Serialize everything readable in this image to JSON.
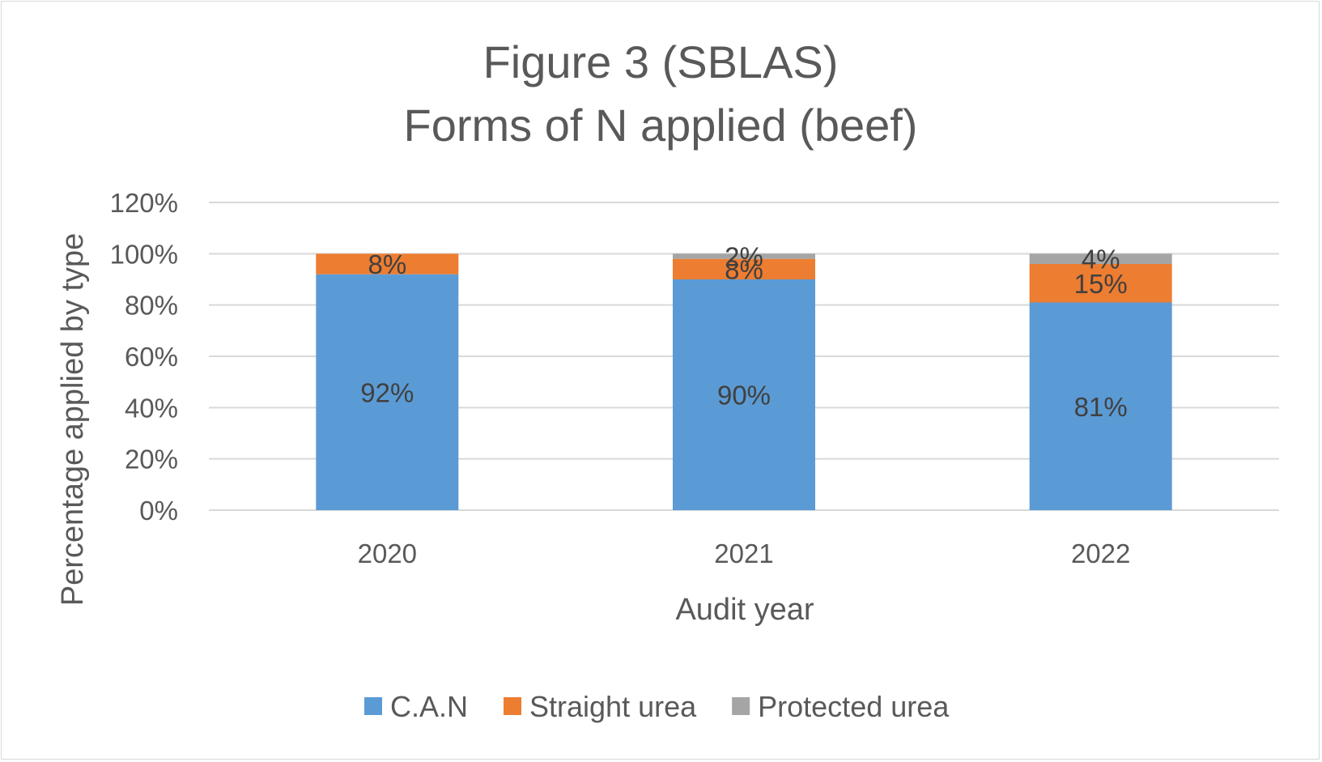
{
  "chart_data": {
    "type": "bar",
    "stacked": true,
    "title": [
      "Figure 3 (SBLAS)",
      "Forms of N applied (beef)"
    ],
    "xlabel": "Audit year",
    "ylabel": "Percentage applied by type",
    "categories": [
      "2020",
      "2021",
      "2022"
    ],
    "ylim": [
      0,
      120
    ],
    "yticks": [
      "0%",
      "20%",
      "40%",
      "60%",
      "80%",
      "100%",
      "120%"
    ],
    "grid": true,
    "legend_position": "bottom",
    "series": [
      {
        "name": "C.A.N",
        "color": "#5b9bd5",
        "values": [
          92,
          90,
          81
        ],
        "labels": [
          "92%",
          "90%",
          "81%"
        ]
      },
      {
        "name": "Straight urea",
        "color": "#ed7d31",
        "values": [
          8,
          8,
          15
        ],
        "labels": [
          "8%",
          "8%",
          "15%"
        ]
      },
      {
        "name": "Protected urea",
        "color": "#a5a5a5",
        "values": [
          0,
          2,
          4
        ],
        "labels": [
          "",
          "2%",
          "4%"
        ]
      }
    ]
  }
}
